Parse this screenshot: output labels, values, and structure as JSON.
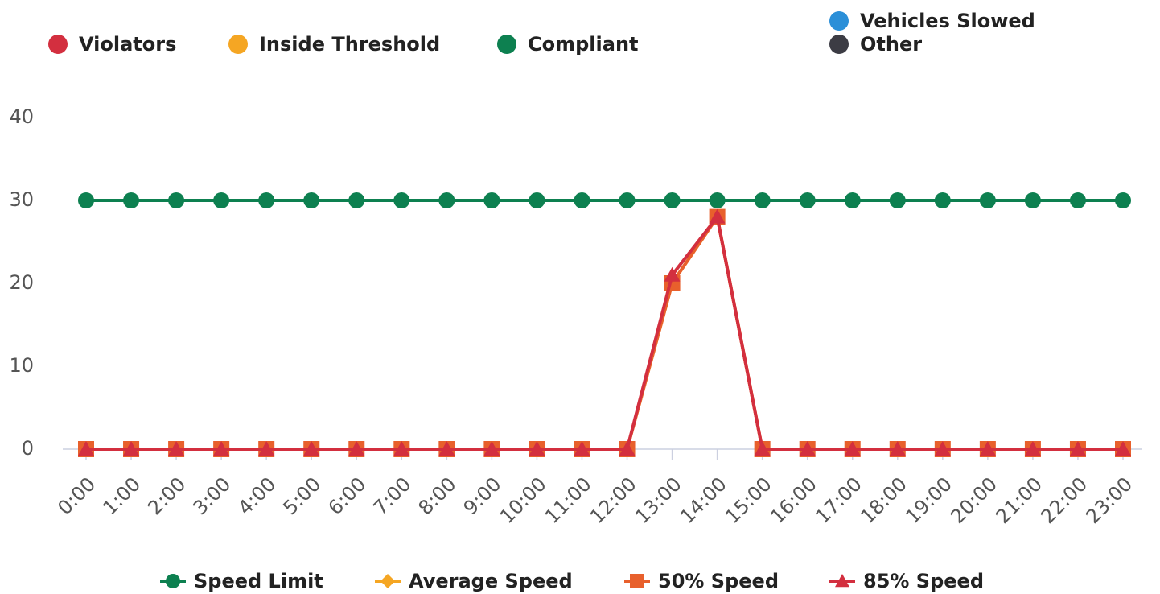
{
  "chart_data": {
    "type": "line",
    "top_legend": [
      {
        "name": "Violators",
        "color": "#d32f3f"
      },
      {
        "name": "Inside Threshold",
        "color": "#f5a623"
      },
      {
        "name": "Compliant",
        "color": "#0d8050"
      },
      {
        "name": "Vehicles Slowed",
        "color": "#2b8fd8"
      },
      {
        "name": "Other",
        "color": "#3c3c44"
      }
    ],
    "categories": [
      "0:00",
      "1:00",
      "2:00",
      "3:00",
      "4:00",
      "5:00",
      "6:00",
      "7:00",
      "8:00",
      "9:00",
      "10:00",
      "11:00",
      "12:00",
      "13:00",
      "14:00",
      "15:00",
      "16:00",
      "17:00",
      "18:00",
      "19:00",
      "20:00",
      "21:00",
      "22:00",
      "23:00"
    ],
    "series": [
      {
        "name": "Speed Limit",
        "color": "#0d8050",
        "marker": "circle",
        "values": [
          30,
          30,
          30,
          30,
          30,
          30,
          30,
          30,
          30,
          30,
          30,
          30,
          30,
          30,
          30,
          30,
          30,
          30,
          30,
          30,
          30,
          30,
          30,
          30
        ]
      },
      {
        "name": "Average Speed",
        "color": "#f5a623",
        "marker": "diamond",
        "values": [
          0,
          0,
          0,
          0,
          0,
          0,
          0,
          0,
          0,
          0,
          0,
          0,
          0,
          20,
          28,
          0,
          0,
          0,
          0,
          0,
          0,
          0,
          0,
          0
        ]
      },
      {
        "name": "50% Speed",
        "color": "#e8602c",
        "marker": "square",
        "values": [
          0,
          0,
          0,
          0,
          0,
          0,
          0,
          0,
          0,
          0,
          0,
          0,
          0,
          20,
          28,
          0,
          0,
          0,
          0,
          0,
          0,
          0,
          0,
          0
        ]
      },
      {
        "name": "85% Speed",
        "color": "#d32f3f",
        "marker": "triangle",
        "values": [
          0,
          0,
          0,
          0,
          0,
          0,
          0,
          0,
          0,
          0,
          0,
          0,
          0,
          21,
          28,
          0,
          0,
          0,
          0,
          0,
          0,
          0,
          0,
          0
        ]
      }
    ],
    "ylim": [
      0,
      40
    ],
    "yticks": [
      0,
      10,
      20,
      30,
      40
    ]
  }
}
